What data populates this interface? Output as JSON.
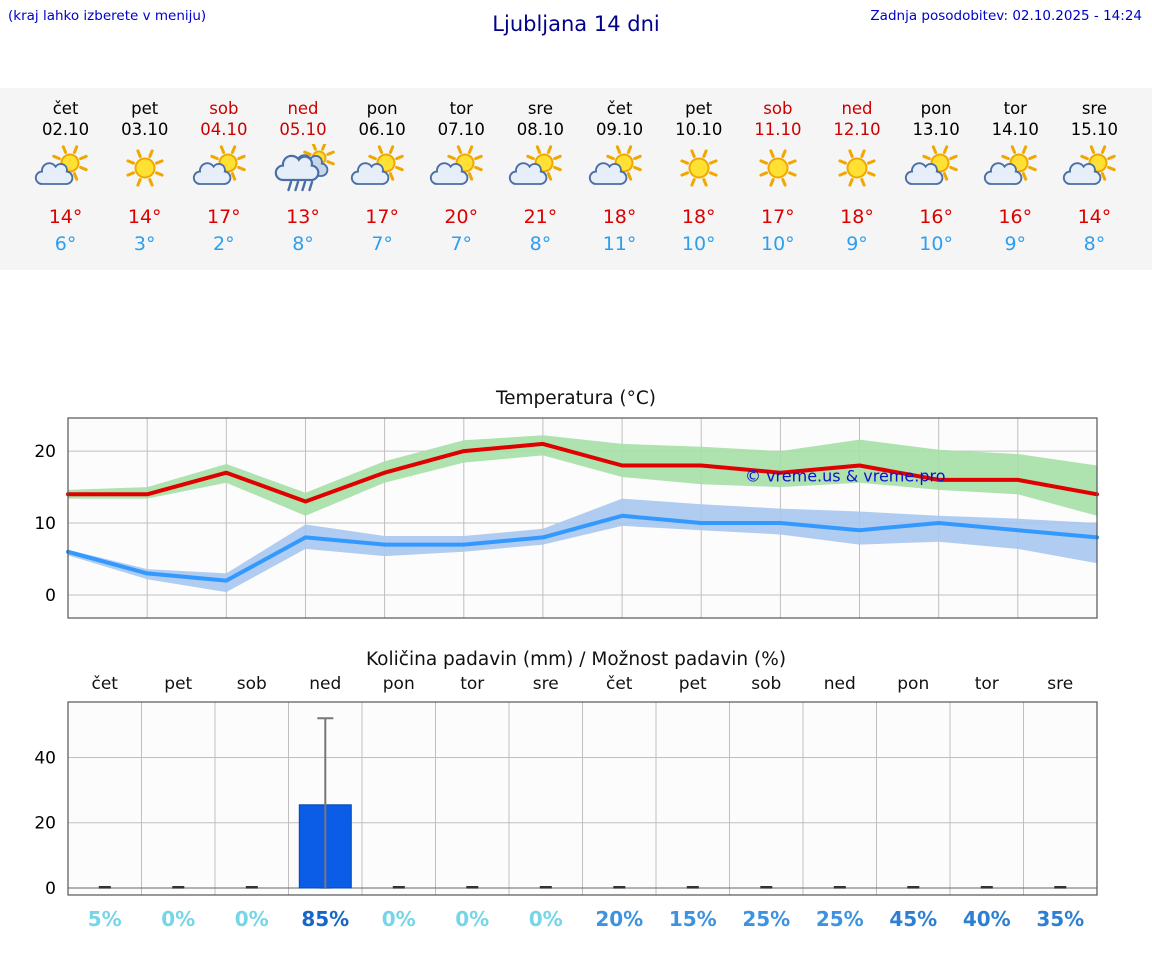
{
  "header": {
    "hint": "(kraj lahko izberete v meniju)",
    "title": "Ljubljana 14 dni",
    "last_update": "Zadnja posodobitev: 02.10.2025 - 14:24"
  },
  "colors": {
    "hint_blue": "#0000cc",
    "title_blue": "#00008b",
    "weekend_red": "#cc0000",
    "high_temp_red": "#dd0000",
    "low_temp_blue": "#2b9ff0",
    "strip_background": "#f5f5f5",
    "temp_max_line": "#e00000",
    "temp_max_band": "#a5dfa5",
    "temp_min_line": "#3399ff",
    "temp_min_band": "#a9c6ef",
    "precip_bar": "#0b5ce6"
  },
  "forecast_days": [
    {
      "name": "čet",
      "date": "02.10",
      "weekend": false,
      "icon": "sun-cloud",
      "high": "14°",
      "low": "6°"
    },
    {
      "name": "pet",
      "date": "03.10",
      "weekend": false,
      "icon": "sun",
      "high": "14°",
      "low": "3°"
    },
    {
      "name": "sob",
      "date": "04.10",
      "weekend": true,
      "icon": "sun-cloud",
      "high": "17°",
      "low": "2°"
    },
    {
      "name": "ned",
      "date": "05.10",
      "weekend": true,
      "icon": "rain",
      "high": "13°",
      "low": "8°"
    },
    {
      "name": "pon",
      "date": "06.10",
      "weekend": false,
      "icon": "sun-cloud",
      "high": "17°",
      "low": "7°"
    },
    {
      "name": "tor",
      "date": "07.10",
      "weekend": false,
      "icon": "sun-cloud",
      "high": "20°",
      "low": "7°"
    },
    {
      "name": "sre",
      "date": "08.10",
      "weekend": false,
      "icon": "sun-cloud",
      "high": "21°",
      "low": "8°"
    },
    {
      "name": "čet",
      "date": "09.10",
      "weekend": false,
      "icon": "sun-cloud",
      "high": "18°",
      "low": "11°"
    },
    {
      "name": "pet",
      "date": "10.10",
      "weekend": false,
      "icon": "sun",
      "high": "18°",
      "low": "10°"
    },
    {
      "name": "sob",
      "date": "11.10",
      "weekend": true,
      "icon": "sun",
      "high": "17°",
      "low": "10°"
    },
    {
      "name": "ned",
      "date": "12.10",
      "weekend": true,
      "icon": "sun",
      "high": "18°",
      "low": "9°"
    },
    {
      "name": "pon",
      "date": "13.10",
      "weekend": false,
      "icon": "sun-cloud",
      "high": "16°",
      "low": "10°"
    },
    {
      "name": "tor",
      "date": "14.10",
      "weekend": false,
      "icon": "sun-cloud",
      "high": "16°",
      "low": "9°"
    },
    {
      "name": "sre",
      "date": "15.10",
      "weekend": false,
      "icon": "sun-cloud",
      "high": "14°",
      "low": "8°"
    }
  ],
  "chart_data": [
    {
      "type": "line",
      "title": "Temperatura (°C)",
      "categories": [
        "čet 02.10",
        "pet 03.10",
        "sob 04.10",
        "ned 05.10",
        "pon 06.10",
        "tor 07.10",
        "sre 08.10",
        "čet 09.10",
        "pet 10.10",
        "sob 11.10",
        "ned 12.10",
        "pon 13.10",
        "tor 14.10",
        "sre 15.10"
      ],
      "ylim": [
        -3.2,
        24.6
      ],
      "yticks": [
        0,
        10,
        20
      ],
      "grid": true,
      "watermark": "© vreme.us & vreme.pro",
      "series": [
        {
          "name": "temperatura max",
          "color": "#e00000",
          "values": [
            14,
            14,
            17,
            13,
            17,
            20,
            21,
            18,
            18,
            17,
            18,
            16,
            16,
            14
          ],
          "band_color": "#a5dfa5",
          "band_upper": [
            14.6,
            15,
            18.2,
            14.2,
            18.6,
            21.5,
            22.2,
            21,
            20.6,
            20,
            21.6,
            20.2,
            19.6,
            18
          ],
          "band_lower": [
            13.4,
            13.4,
            15.6,
            11,
            15.6,
            18.4,
            19.4,
            16.4,
            15.4,
            15,
            15.6,
            14.6,
            14,
            11
          ]
        },
        {
          "name": "temperatura min",
          "color": "#3399ff",
          "values": [
            6,
            3,
            2,
            8,
            7,
            7,
            8,
            11,
            10,
            10,
            9,
            10,
            9,
            8
          ],
          "band_color": "#a9c6ef",
          "band_upper": [
            6.3,
            3.6,
            3,
            9.8,
            8.2,
            8.2,
            9.2,
            13.4,
            12.6,
            12,
            11.6,
            11,
            10.6,
            10
          ],
          "band_lower": [
            5.5,
            2.2,
            0.4,
            6.4,
            5.4,
            6,
            7,
            9.6,
            9,
            8.4,
            7,
            7.4,
            6.4,
            4.4
          ]
        }
      ]
    },
    {
      "type": "bar",
      "title": "Količina padavin (mm) / Možnost padavin (%)",
      "categories": [
        "čet",
        "pet",
        "sob",
        "ned",
        "pon",
        "tor",
        "sre",
        "čet",
        "pet",
        "sob",
        "ned",
        "pon",
        "tor",
        "sre"
      ],
      "values": [
        0,
        0,
        0,
        25.5,
        0,
        0,
        0,
        0,
        0,
        0,
        0,
        0,
        0,
        0
      ],
      "whisker_max": [
        0,
        0,
        0,
        52,
        0,
        0,
        0,
        0,
        0,
        0,
        0,
        0,
        0,
        0
      ],
      "ylim": [
        0,
        57
      ],
      "yticks": [
        0,
        20,
        40
      ],
      "bar_color": "#0b5ce6",
      "probabilities": [
        {
          "label": "5%",
          "color": "#76d6e8"
        },
        {
          "label": "0%",
          "color": "#76d6e8"
        },
        {
          "label": "0%",
          "color": "#76d6e8"
        },
        {
          "label": "85%",
          "color": "#1766c8"
        },
        {
          "label": "0%",
          "color": "#76d6e8"
        },
        {
          "label": "0%",
          "color": "#76d6e8"
        },
        {
          "label": "0%",
          "color": "#76d6e8"
        },
        {
          "label": "20%",
          "color": "#3d93e0"
        },
        {
          "label": "15%",
          "color": "#3d93e0"
        },
        {
          "label": "25%",
          "color": "#3d93e0"
        },
        {
          "label": "25%",
          "color": "#3d93e0"
        },
        {
          "label": "45%",
          "color": "#2e7fd4"
        },
        {
          "label": "40%",
          "color": "#2e7fd4"
        },
        {
          "label": "35%",
          "color": "#2e7fd4"
        }
      ]
    }
  ]
}
